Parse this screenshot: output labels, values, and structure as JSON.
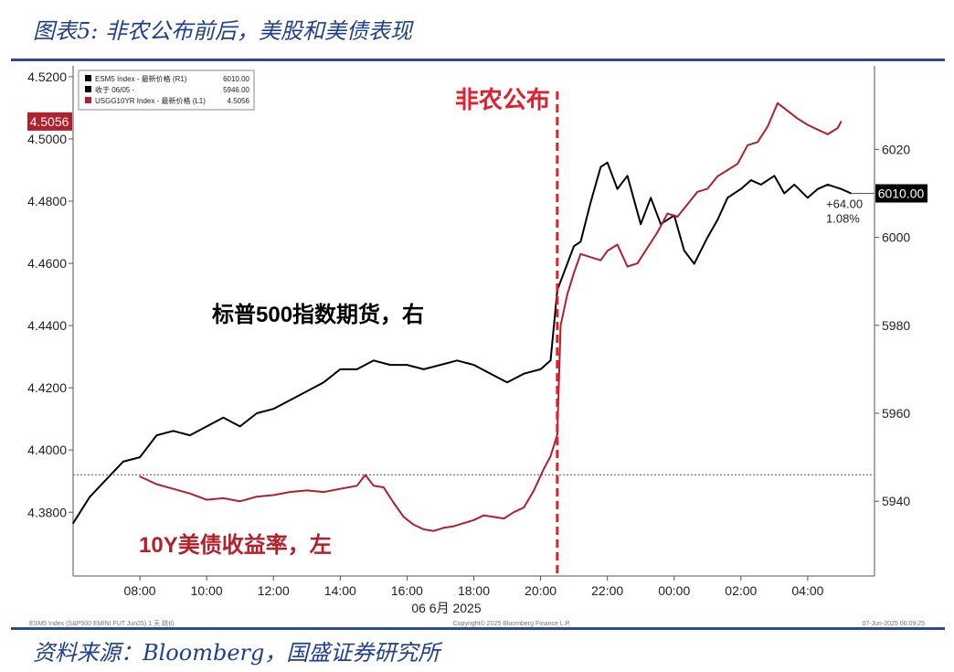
{
  "figure_title": "图表5:  非农公布前后，美股和美债表现",
  "source": "资料来源：Bloomberg，国盛证券研究所",
  "chart_data": {
    "type": "line",
    "title": "",
    "x_axis": {
      "label": "06 6月 2025",
      "ticks": [
        "08:00",
        "10:00",
        "12:00",
        "14:00",
        "16:00",
        "18:00",
        "20:00",
        "22:00",
        "00:00",
        "02:00",
        "04:00"
      ]
    },
    "y_left": {
      "ticks": [
        "4.3800",
        "4.4000",
        "4.4200",
        "4.4400",
        "4.4600",
        "4.4800",
        "4.5000",
        "4.5200"
      ],
      "range": [
        4.3595,
        4.5235
      ]
    },
    "y_right": {
      "ticks": [
        "5940",
        "5960",
        "5980",
        "6000",
        "6020"
      ],
      "range": [
        5923,
        6039
      ]
    },
    "legend": [
      {
        "name": "ESM5 Index - 最新价格 (R1)",
        "value": "6010.00",
        "color": "#000000"
      },
      {
        "name": "收于 06/05 -",
        "value": "5946.00",
        "color": "#000000"
      },
      {
        "name": "USGG10YR Index - 最新价格 (L1)",
        "value": "4.5056",
        "color": "#b3202c"
      }
    ],
    "series": [
      {
        "name": "标普500指数期货，右",
        "axis": "right",
        "color": "#000000",
        "points": [
          [
            6.0,
            5935
          ],
          [
            6.5,
            5941
          ],
          [
            7.0,
            5945
          ],
          [
            7.5,
            5949
          ],
          [
            8.0,
            5950
          ],
          [
            8.5,
            5955
          ],
          [
            9.0,
            5956
          ],
          [
            9.5,
            5955
          ],
          [
            10.0,
            5957
          ],
          [
            10.5,
            5959
          ],
          [
            11.0,
            5957
          ],
          [
            11.5,
            5960
          ],
          [
            12.0,
            5961
          ],
          [
            12.5,
            5963
          ],
          [
            13.0,
            5965
          ],
          [
            13.5,
            5967
          ],
          [
            14.0,
            5970
          ],
          [
            14.5,
            5970
          ],
          [
            15.0,
            5972
          ],
          [
            15.5,
            5971
          ],
          [
            16.0,
            5971
          ],
          [
            16.5,
            5970
          ],
          [
            17.0,
            5971
          ],
          [
            17.5,
            5972
          ],
          [
            18.0,
            5971
          ],
          [
            18.5,
            5969
          ],
          [
            19.0,
            5967
          ],
          [
            19.5,
            5969
          ],
          [
            20.0,
            5970
          ],
          [
            20.3,
            5972
          ],
          [
            20.5,
            5988
          ],
          [
            20.8,
            5994
          ],
          [
            21.0,
            5998
          ],
          [
            21.2,
            5999
          ],
          [
            21.5,
            6008
          ],
          [
            21.8,
            6016
          ],
          [
            22.0,
            6017
          ],
          [
            22.3,
            6011
          ],
          [
            22.6,
            6014
          ],
          [
            23.0,
            6003
          ],
          [
            23.3,
            6009
          ],
          [
            23.6,
            6003
          ],
          [
            24.0,
            6005
          ],
          [
            24.3,
            5997
          ],
          [
            24.6,
            5994
          ],
          [
            25.0,
            6000
          ],
          [
            25.3,
            6004
          ],
          [
            25.6,
            6009
          ],
          [
            26.0,
            6011
          ],
          [
            26.3,
            6013
          ],
          [
            26.6,
            6012
          ],
          [
            27.0,
            6014
          ],
          [
            27.3,
            6010
          ],
          [
            27.6,
            6012
          ],
          [
            28.0,
            6009
          ],
          [
            28.3,
            6011
          ],
          [
            28.6,
            6012
          ],
          [
            29.0,
            6011
          ],
          [
            29.3,
            6010
          ]
        ]
      },
      {
        "name": "10Y美债收益率，左",
        "axis": "left",
        "color": "#b3202c",
        "points": [
          [
            8.0,
            4.3915
          ],
          [
            8.5,
            4.389
          ],
          [
            9.0,
            4.3875
          ],
          [
            9.5,
            4.386
          ],
          [
            10.0,
            4.384
          ],
          [
            10.5,
            4.3845
          ],
          [
            11.0,
            4.3835
          ],
          [
            11.5,
            4.385
          ],
          [
            12.0,
            4.3855
          ],
          [
            12.5,
            4.3865
          ],
          [
            13.0,
            4.387
          ],
          [
            13.5,
            4.3865
          ],
          [
            14.0,
            4.3875
          ],
          [
            14.5,
            4.3885
          ],
          [
            14.75,
            4.392
          ],
          [
            15.0,
            4.3885
          ],
          [
            15.3,
            4.388
          ],
          [
            15.6,
            4.383
          ],
          [
            15.9,
            4.3785
          ],
          [
            16.2,
            4.376
          ],
          [
            16.5,
            4.3745
          ],
          [
            16.8,
            4.374
          ],
          [
            17.1,
            4.375
          ],
          [
            17.4,
            4.3755
          ],
          [
            17.7,
            4.3765
          ],
          [
            18.0,
            4.3775
          ],
          [
            18.3,
            4.379
          ],
          [
            18.6,
            4.3785
          ],
          [
            18.9,
            4.378
          ],
          [
            19.2,
            4.38
          ],
          [
            19.5,
            4.3815
          ],
          [
            19.8,
            4.387
          ],
          [
            20.1,
            4.394
          ],
          [
            20.3,
            4.398
          ],
          [
            20.5,
            4.405
          ],
          [
            20.6,
            4.44
          ],
          [
            20.8,
            4.45
          ],
          [
            21.0,
            4.457
          ],
          [
            21.2,
            4.463
          ],
          [
            21.5,
            4.462
          ],
          [
            21.8,
            4.461
          ],
          [
            22.0,
            4.464
          ],
          [
            22.3,
            4.466
          ],
          [
            22.6,
            4.459
          ],
          [
            22.9,
            4.46
          ],
          [
            23.2,
            4.465
          ],
          [
            23.5,
            4.47
          ],
          [
            23.8,
            4.476
          ],
          [
            24.1,
            4.475
          ],
          [
            24.4,
            4.479
          ],
          [
            24.7,
            4.483
          ],
          [
            25.0,
            4.484
          ],
          [
            25.3,
            4.488
          ],
          [
            25.6,
            4.49
          ],
          [
            25.9,
            4.492
          ],
          [
            26.2,
            4.498
          ],
          [
            26.5,
            4.499
          ],
          [
            26.8,
            4.504
          ],
          [
            27.1,
            4.5115
          ],
          [
            27.4,
            4.509
          ],
          [
            27.7,
            4.5065
          ],
          [
            28.0,
            4.5045
          ],
          [
            28.3,
            4.503
          ],
          [
            28.6,
            4.5015
          ],
          [
            28.9,
            4.5035
          ],
          [
            29.0,
            4.5056
          ]
        ]
      }
    ],
    "reference_line": {
      "label": "收于 06/05",
      "value": 5946
    },
    "event_line": {
      "label": "非农公布",
      "x": 20.5,
      "color": "#e0202c"
    },
    "annotations": {
      "last_left": "4.5056",
      "last_right": "6010.00",
      "change_abs": "+64.00",
      "change_pct": "1.08%"
    },
    "footer_left": "ESM5 Index (S&P500 EMINI FUT Jun25) 1 天 跳价",
    "footer_center": "Copyright© 2025 Bloomberg Finance L.P.",
    "footer_right": "07-Jun-2025 06:09:25"
  }
}
